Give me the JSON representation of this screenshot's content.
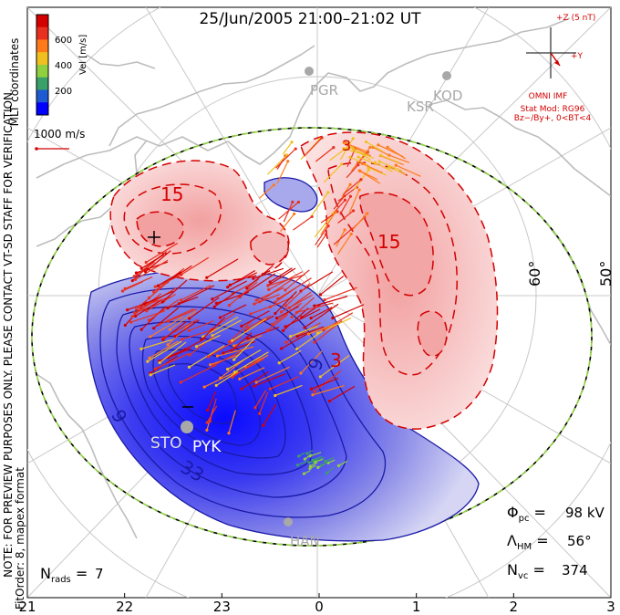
{
  "title": "25/Jun/2005 21:00–21:02 UT",
  "colorbar": {
    "label": "Vel [m/s]",
    "ticks": [
      "600",
      "400",
      "200"
    ],
    "colors": [
      "#0000ff",
      "#1e5ad2",
      "#3aa06a",
      "#8fd040",
      "#f0c020",
      "#ff7a1a",
      "#e83020",
      "#d40000"
    ]
  },
  "coordinate_label": "MLT coordinates",
  "watermark": "NOTE: FOR PREVIEW PURPOSES ONLY. PLEASE CONTACT VT-SD STAFF FOR VERIFICATION.",
  "fit_order": "FitOrder: 8, mapex format",
  "reference_vector": "1000 m/s",
  "imf": {
    "plus_z": "+Z (5 nT)",
    "plus_y": "+Y",
    "label": "OMNI IMF",
    "stat_mod": "Stat Mod: RG96",
    "condition": "Bz−/By+, 0<BT<4",
    "color": "#d40000"
  },
  "stations": [
    "PGR",
    "KSR",
    "KOD",
    "STO",
    "PYK",
    "HAN"
  ],
  "latitude_labels": [
    "60°",
    "50°"
  ],
  "stats": {
    "phi_pc": "98 kV",
    "lambda_hm": "56°",
    "n_vc": "374",
    "n_rads": "7"
  },
  "chart_data": {
    "type": "convection map (polar contour)",
    "x_ticks_mlt": [
      "21",
      "22",
      "23",
      "0",
      "1",
      "2",
      "3"
    ],
    "potential_contour_labels": [
      "15",
      "3",
      "9",
      "15",
      "3",
      "9",
      "33"
    ],
    "positive_cell_color": "#cc0000",
    "negative_cell_color": "#0000cc",
    "heppner_maynard_boundary_color": "#8fd040"
  }
}
